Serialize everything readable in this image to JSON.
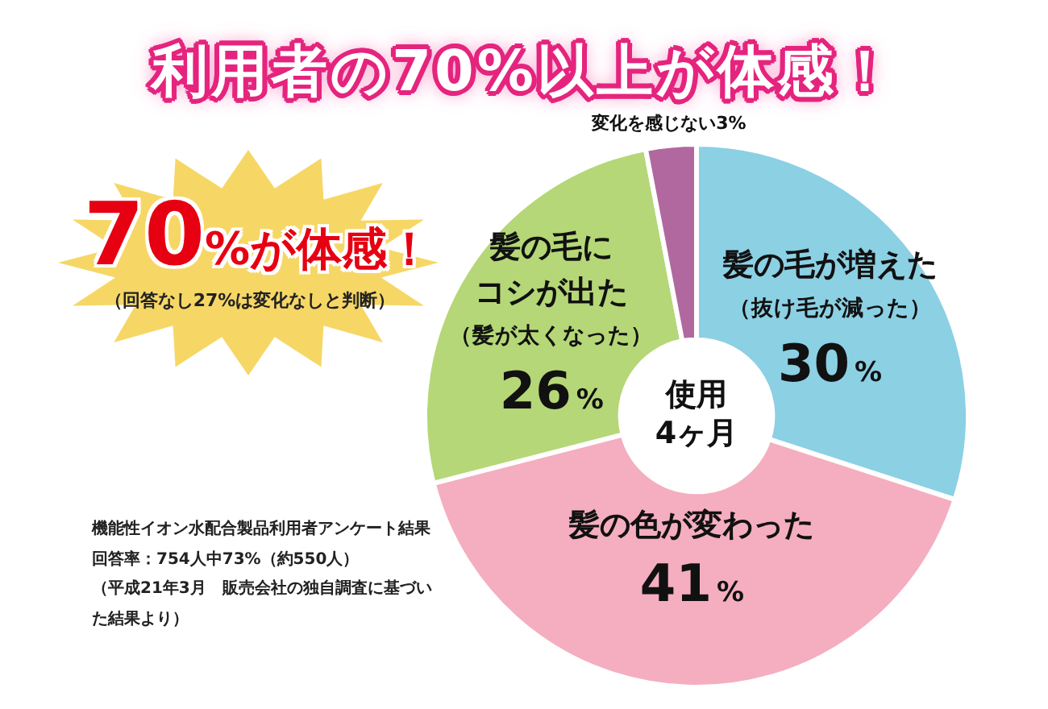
{
  "chart_data": {
    "type": "donut",
    "title": "利用者の70%以上が体感！",
    "categories": [
      "髪の毛が増えた（抜け毛が減った）",
      "髪の色が変わった",
      "髪の毛にコシが出た（髪が太くなった）",
      "変化を感じない"
    ],
    "values": [
      30,
      41,
      26,
      3
    ],
    "value_labels": [
      "30%",
      "41%",
      "26%",
      "3%"
    ],
    "colors": [
      "#8cd0e4",
      "#f4aec0",
      "#b5d777",
      "#b1689f"
    ],
    "annotations": [
      "70%が体感！",
      "（回答なし27%は変化なしと判断）",
      "使用4ヶ月",
      "機能性イオン水配合製品利用者アンケート結果",
      "回答率：754人中73%（約550人）",
      "（平成21年3月　販売会社の独自調査に基づいた結果より）"
    ],
    "legend": false
  }
}
